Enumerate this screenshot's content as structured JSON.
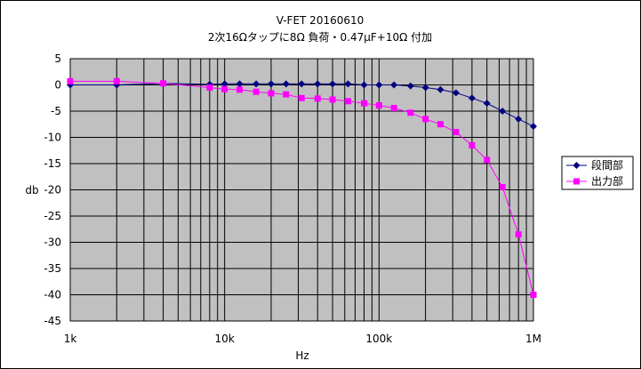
{
  "chart_data": {
    "type": "line",
    "title": "V-FET  20160610",
    "subtitle": "2次16Ωタップに8Ω 負荷・0.47μF+10Ω 付加",
    "xlabel": "Hz",
    "ylabel": "db",
    "x_scale": "log",
    "xlim": [
      1000,
      1000000
    ],
    "ylim": [
      -45,
      5
    ],
    "x_ticks": [
      1000,
      10000,
      100000,
      1000000
    ],
    "x_tick_labels": [
      "1k",
      "10k",
      "100k",
      "1M"
    ],
    "y_ticks": [
      5,
      0,
      -5,
      -10,
      -15,
      -20,
      -25,
      -30,
      -35,
      -40,
      -45
    ],
    "y_tick_labels": [
      "5",
      "0",
      "-5",
      "-10",
      "-15",
      "-20",
      "-25",
      "-30",
      "-35",
      "-40",
      "-45"
    ],
    "grid": true,
    "plot_background": "#c0c0c0",
    "legend_position": "right",
    "series": [
      {
        "name": "段間部",
        "color": "#000080",
        "marker": "diamond",
        "x": [
          1000,
          2000,
          4000,
          8000,
          10000,
          12500,
          16000,
          20000,
          25000,
          31500,
          40000,
          50000,
          63000,
          80000,
          100000,
          125000,
          160000,
          200000,
          250000,
          315000,
          400000,
          500000,
          630000,
          800000,
          1000000
        ],
        "y": [
          0,
          0,
          0.3,
          0.1,
          0.2,
          0.2,
          0.2,
          0.2,
          0.2,
          0.2,
          0.2,
          0.2,
          0.2,
          0,
          0,
          0,
          -0.2,
          -0.5,
          -0.9,
          -1.5,
          -2.5,
          -3.5,
          -5,
          -6.5,
          -7.9
        ]
      },
      {
        "name": "出力部",
        "color": "#ff00ff",
        "marker": "square",
        "x": [
          1000,
          2000,
          4000,
          8000,
          10000,
          12500,
          16000,
          20000,
          25000,
          31500,
          40000,
          50000,
          63000,
          80000,
          100000,
          125000,
          160000,
          200000,
          250000,
          315000,
          400000,
          500000,
          630000,
          800000,
          1000000
        ],
        "y": [
          0.7,
          0.7,
          0.3,
          -0.5,
          -0.8,
          -0.9,
          -1.3,
          -1.6,
          -1.8,
          -2.5,
          -2.6,
          -2.8,
          -3.1,
          -3.5,
          -3.9,
          -4.4,
          -5.3,
          -6.5,
          -7.5,
          -9.0,
          -11.5,
          -14.3,
          -19.5,
          -28.5,
          -40.0
        ]
      }
    ]
  }
}
